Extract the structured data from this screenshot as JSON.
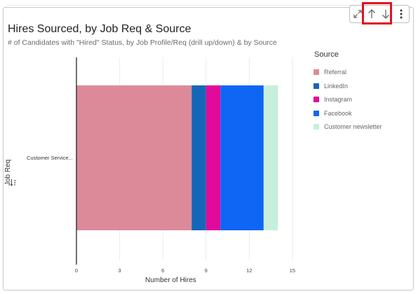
{
  "header": {
    "title": "Hires Sourced, by Job Req & Source",
    "subtitle": "# of Candidates with \"Hired\" Status, by Job Profile/Req (drill up/down) & by Source"
  },
  "toolbar": {
    "expand_icon": "expand-icon",
    "drill_up_icon": "arrow-up-icon",
    "drill_down_icon": "arrow-down-icon",
    "menu_icon": "more-vertical-icon"
  },
  "legend": {
    "title": "Source",
    "items": [
      {
        "label": "Referral",
        "color": "#dc8a9a"
      },
      {
        "label": "LinkedIn",
        "color": "#1666b8"
      },
      {
        "label": "Instagram",
        "color": "#e10a9a"
      },
      {
        "label": "Facebook",
        "color": "#0f66f5"
      },
      {
        "label": "Customer newsletter",
        "color": "#c7efdb"
      }
    ]
  },
  "chart_data": {
    "type": "bar",
    "orientation": "horizontal",
    "stacked": true,
    "title": "Hires Sourced, by Job Req & Source",
    "subtitle": "# of Candidates with \"Hired\" Status, by Job Profile/Req (drill up/down) & by Source",
    "xlabel": "Number of Hires",
    "ylabel": "Job Req",
    "categories": [
      "Customer Service..."
    ],
    "series": [
      {
        "name": "Referral",
        "values": [
          8
        ]
      },
      {
        "name": "LinkedIn",
        "values": [
          1
        ]
      },
      {
        "name": "Instagram",
        "values": [
          1
        ]
      },
      {
        "name": "Facebook",
        "values": [
          3
        ]
      },
      {
        "name": "Customer newsletter",
        "values": [
          1
        ]
      }
    ],
    "xlim": [
      0,
      15.5
    ],
    "xticks": [
      0,
      3,
      6,
      9,
      12,
      15
    ],
    "grid": true,
    "legend_position": "right"
  }
}
